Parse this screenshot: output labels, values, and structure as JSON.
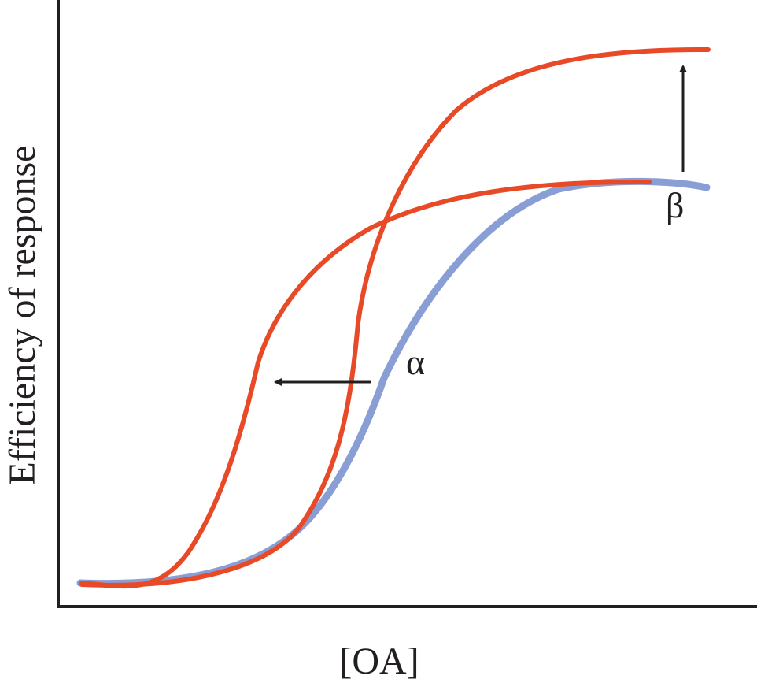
{
  "chart_data": {
    "type": "line",
    "title": "",
    "xlabel": "[OA]",
    "ylabel": "Efficiency of response",
    "x_ticks": [],
    "y_ticks": [],
    "grid": false,
    "legend": "none",
    "series": [
      {
        "id": "baseline",
        "color": "#8a9ed6",
        "x": [
          0.0,
          0.1,
          0.2,
          0.3,
          0.4,
          0.5,
          0.6,
          0.7,
          0.8,
          0.9,
          1.0
        ],
        "values": [
          0.01,
          0.01,
          0.04,
          0.15,
          0.36,
          0.54,
          0.62,
          0.64,
          0.65,
          0.65,
          0.65
        ]
      },
      {
        "id": "alpha-shifted",
        "color": "#e84a27",
        "x": [
          0.0,
          0.1,
          0.2,
          0.3,
          0.4,
          0.5,
          0.6,
          0.7,
          0.8,
          0.9,
          1.0
        ],
        "values": [
          0.01,
          0.06,
          0.28,
          0.41,
          0.55,
          0.61,
          0.64,
          0.65,
          0.66,
          0.66,
          0.66
        ]
      },
      {
        "id": "beta-shifted",
        "color": "#e84a27",
        "x": [
          0.0,
          0.1,
          0.2,
          0.3,
          0.4,
          0.5,
          0.6,
          0.7,
          0.8,
          0.9,
          1.0
        ],
        "values": [
          0.01,
          0.01,
          0.03,
          0.14,
          0.41,
          0.65,
          0.82,
          0.91,
          0.94,
          0.95,
          0.95
        ]
      }
    ],
    "annotations": [
      {
        "id": "alpha",
        "text": "α",
        "arrow_direction": "left"
      },
      {
        "id": "beta",
        "text": "β",
        "arrow_direction": "up"
      }
    ],
    "axis_color": "#231f20",
    "arrow_color": "#231f20"
  }
}
